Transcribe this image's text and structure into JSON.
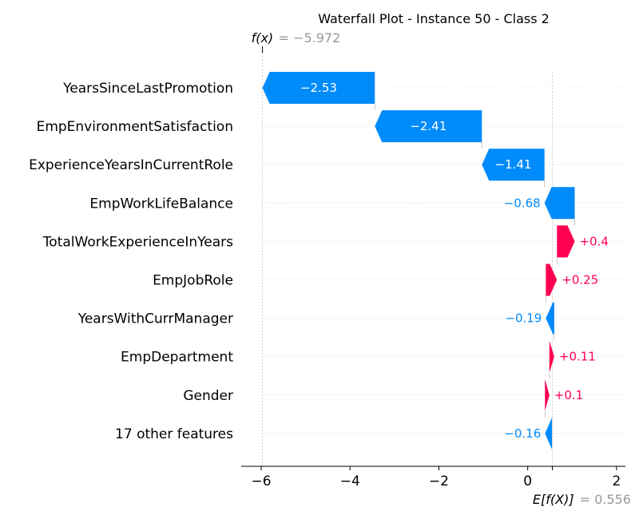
{
  "chart_data": {
    "type": "waterfall",
    "title": "Waterfall Plot - Instance 50 - Class 2",
    "fx_label": "f(x)",
    "fx_value_text": "= −5.972",
    "fx_value": -5.972,
    "ex_label": "E[f(X)]",
    "ex_value_text": "= 0.556",
    "ex_value": 0.556,
    "xlim": [
      -6.45,
      2.2
    ],
    "xticks": [
      {
        "value": -6,
        "label": "−6"
      },
      {
        "value": -4,
        "label": "−4"
      },
      {
        "value": -2,
        "label": "−2"
      },
      {
        "value": 0,
        "label": "0"
      },
      {
        "value": 2,
        "label": "2"
      }
    ],
    "features": [
      {
        "name": "YearsSinceLastPromotion",
        "value": -2.53,
        "label": "−2.53"
      },
      {
        "name": "EmpEnvironmentSatisfaction",
        "value": -2.41,
        "label": "−2.41"
      },
      {
        "name": "ExperienceYearsInCurrentRole",
        "value": -1.41,
        "label": "−1.41"
      },
      {
        "name": "EmpWorkLifeBalance",
        "value": -0.68,
        "label": "−0.68"
      },
      {
        "name": "TotalWorkExperienceInYears",
        "value": 0.4,
        "label": "+0.4"
      },
      {
        "name": "EmpJobRole",
        "value": 0.25,
        "label": "+0.25"
      },
      {
        "name": "YearsWithCurrManager",
        "value": -0.19,
        "label": "−0.19"
      },
      {
        "name": "EmpDepartment",
        "value": 0.11,
        "label": "+0.11"
      },
      {
        "name": "Gender",
        "value": 0.1,
        "label": "+0.1"
      },
      {
        "name": "17 other features",
        "value": -0.16,
        "label": "−0.16"
      }
    ],
    "colors": {
      "negative": "#008bfb",
      "positive": "#ff0051",
      "axis": "#000000",
      "grid": "#cccccc",
      "expected_text": "#999999",
      "text": "#000000"
    },
    "grid": true
  }
}
